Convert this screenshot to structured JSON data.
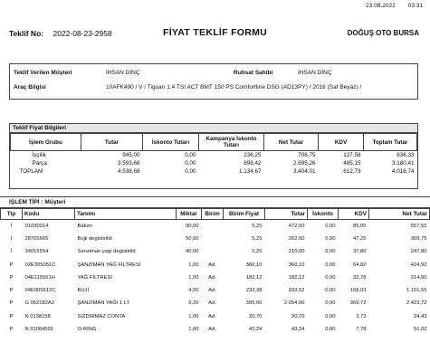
{
  "date": "23.08.2022",
  "time": "03:31",
  "header": {
    "teklif_no_label": "Teklif No:",
    "teklif_no": "2022-08-23-2958",
    "title": "FİYAT TEKLİF FORMU",
    "dealer": "DOĞUŞ OTO BURSA"
  },
  "info": {
    "musteri_label": "Teklif Verilen Müşteri",
    "musteri": "İHSAN DİNÇ",
    "ruhsat_label": "Ruhsat Sahibi",
    "ruhsat": "İHSAN DİNÇ",
    "arac_label": "Araç Bilgisi",
    "arac": "10AFK490 / V / Tiguan 1.4 TSI ACT BMT 150 PS Comfortline DSG (AD13PY)  / 2016 (Saf Beyaz) /"
  },
  "price": {
    "section_title": "Teklif Fiyat Bilgileri",
    "headers": [
      "İşlem Grubu",
      "Tutar",
      "İskonto Tutarı",
      "Kampanya İskonto Tutarı",
      "Net Tutar",
      "KDV",
      "Toplam Tutar"
    ],
    "rows": [
      [
        "İşçilik",
        "945,00",
        "0,00",
        "236,25",
        "708,75",
        "127,58",
        "836,33"
      ],
      [
        "Parça",
        "3.593,68",
        "0,00",
        "898,42",
        "2.695,26",
        "485,15",
        "3.180,41"
      ],
      [
        "TOPLAM",
        "4.538,68",
        "0,00",
        "1.134,67",
        "3.404,01",
        "612,73",
        "4.016,74"
      ]
    ]
  },
  "islem": {
    "section_title": "İŞLEM TİPİ : Müşteri",
    "headers": [
      "Tip",
      "Kodu",
      "Tanımı",
      "Miktar",
      "Birim",
      "Birim Fiyat",
      "Tutar",
      "İskonto",
      "KDV",
      "Net Tutar"
    ],
    "rows": [
      [
        "İ",
        "01030014",
        "Bakım",
        "90,00",
        "",
        "5,25",
        "472,50",
        "0,00",
        "85,05",
        "557,55"
      ],
      [
        "İ",
        "28705665",
        "Bujii degistirildi",
        "50,00",
        "",
        "5,25",
        "262,50",
        "0,00",
        "47,25",
        "309,75"
      ],
      [
        "İ",
        "34015554",
        "Sanziman yagi degistirild",
        "40,00",
        "",
        "5,25",
        "210,00",
        "0,00",
        "37,80",
        "247,80"
      ],
      [
        "P",
        "02E305051C",
        "ŞANZIMAN YAĞ FİLTRESİ",
        "1,00",
        "Ad.",
        "360,10",
        "360,10",
        "0,00",
        "64,82",
        "424,92"
      ],
      [
        "P",
        "04E115561H",
        "YAĞ FİLTRESİ",
        "1,00",
        "Ad.",
        "182,12",
        "182,12",
        "0,00",
        "32,78",
        "214,90"
      ],
      [
        "P",
        "04E905612C",
        "BUJİ",
        "4,00",
        "Ad.",
        "233,38",
        "933,52",
        "0,00",
        "168,03",
        "1.101,55"
      ],
      [
        "P",
        "G  052182A2",
        "ŞANZIMAN YAĞI 1 LT",
        "5,20",
        "Ad.",
        "395,00",
        "2.054,00",
        "0,00",
        "369,72",
        "2.423,72"
      ],
      [
        "P",
        "N  0138158",
        "SIZDIRMAZ CONTA",
        "1,00",
        "Ad.",
        "20,70",
        "20,70",
        "0,00",
        "3,73",
        "24,43"
      ],
      [
        "P",
        "N  91084501",
        "O-RING",
        "1,00",
        "Ad.",
        "43,24",
        "43,24",
        "0,00",
        "7,78",
        "51,02"
      ]
    ]
  }
}
